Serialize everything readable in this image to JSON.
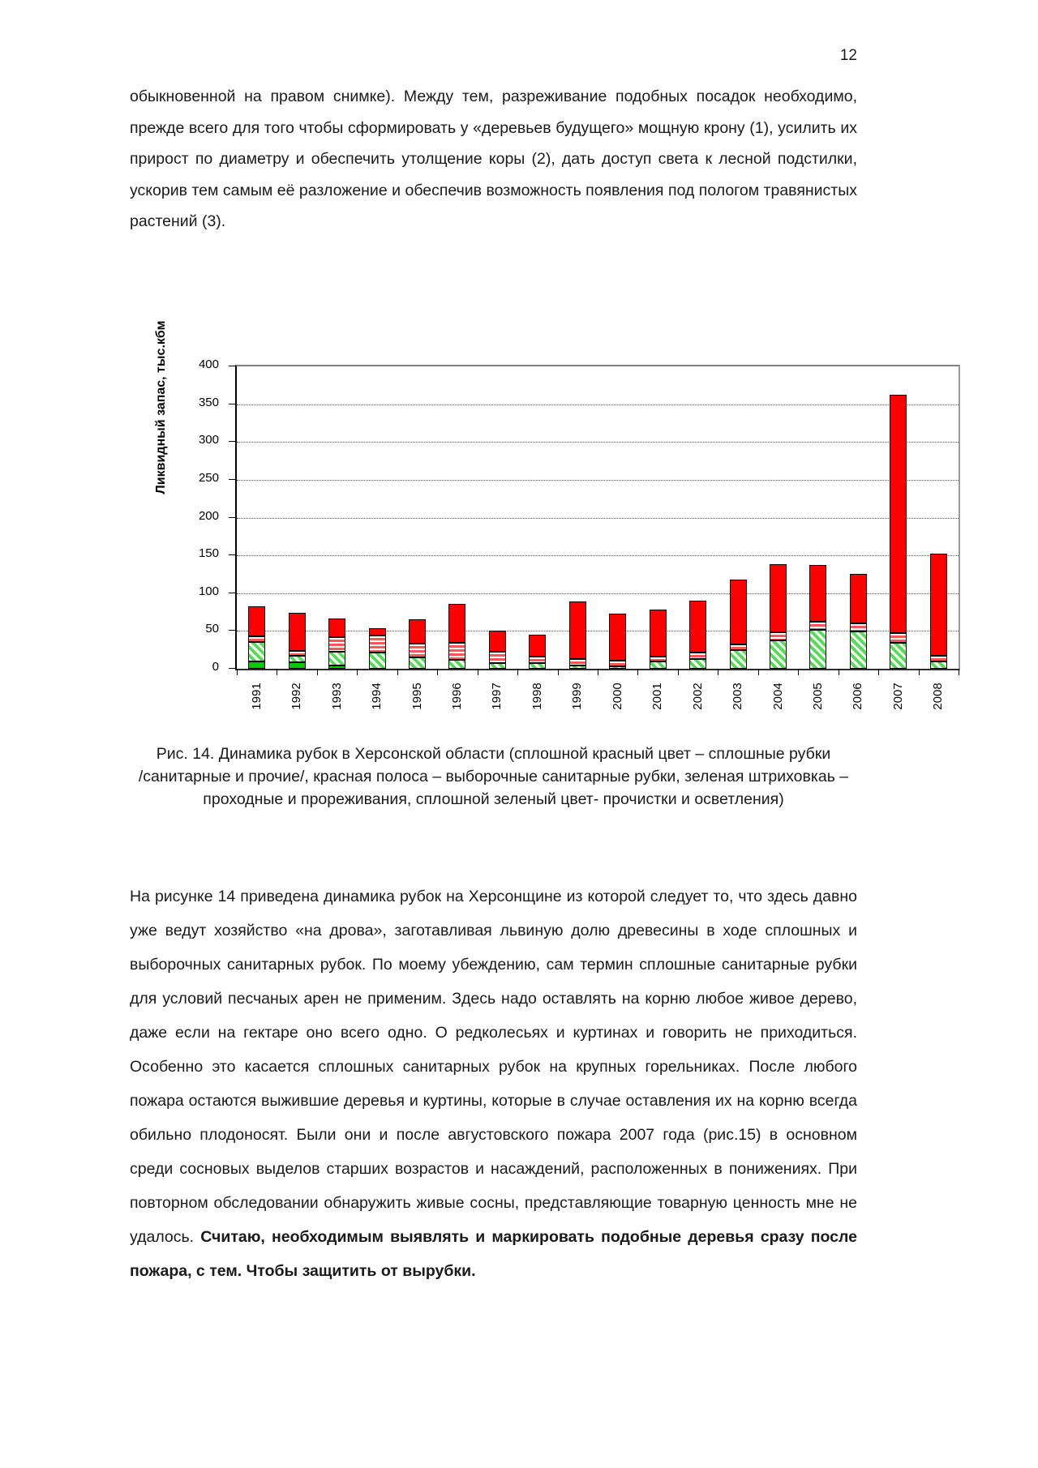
{
  "page": {
    "number": "12",
    "paragraph1": "обыкновенной на правом снимке). Между тем, разреживание  подобных посадок необходимо, прежде всего для того чтобы сформировать у «деревьев будущего» мощную крону (1), усилить их прирост по диаметру и обеспечить утолщение коры (2), дать доступ света к лесной подстилки, ускорив тем самым её разложение  и обеспечив возможность появления под пологом травянистых растений (3).",
    "caption": {
      "line1": "Рис. 14. Динамика рубок в Херсонской области (сплошной красный цвет – сплошные рубки",
      "line2": "/санитарные и прочие/, красная полоса – выборочные санитарные рубки, зеленая штриховкаь –",
      "line3": "проходные и прореживания, сплошной зеленый цвет- прочистки и осветления)"
    },
    "paragraph2_normal": "На рисунке 14 приведена динамика рубок на Херсонщине из которой следует  то, что здесь давно уже ведут хозяйство «на дрова», заготавливая львиную долю древесины в ходе сплошных и выборочных санитарных рубок.  По моему убеждению, сам термин сплошные санитарные рубки для условий песчаных арен не применим. Здесь надо оставлять на корню любое живое дерево, даже если на гектаре оно всего одно. О редколесьях и куртинах и говорить не приходиться.  Особенно это касается сплошных санитарных рубок на крупных горельниках. После любого  пожара остаются выжившие деревья и куртины, которые в случае оставления их на корню всегда обильно плодоносят. Были они и после августовского пожара 2007 года (рис.15) в основном среди сосновых выделов старших возрастов и насаждений, расположенных в понижениях. При повторном обследовании обнаружить живые сосны,  представляющие товарную ценность мне не удалось. ",
    "paragraph2_bold": "Считаю, необходимым выявлять  и маркировать подобные деревья сразу после пожара, с тем. Чтобы защитить от вырубки."
  },
  "chart_data": {
    "type": "bar",
    "stacked": true,
    "ylabel": "Ликвидный запас, тыс.кбм",
    "ylim": [
      0,
      400
    ],
    "ytick_step": 50,
    "grid": "horizontal-dotted",
    "legend": "none (described in figure caption)",
    "categories": [
      "1991",
      "1992",
      "1993",
      "1994",
      "1995",
      "1996",
      "1997",
      "1998",
      "1999",
      "2000",
      "2001",
      "2002",
      "2003",
      "2004",
      "2005",
      "2006",
      "2007",
      "2008"
    ],
    "series": [
      {
        "name": "прочистки и осветления",
        "style": "green-solid",
        "values": [
          10,
          9,
          4,
          0,
          0,
          0,
          0,
          0,
          0,
          0,
          0,
          0,
          0,
          0,
          0,
          0,
          0,
          0
        ]
      },
      {
        "name": "проходные и прореживания",
        "style": "green-hatch",
        "values": [
          25,
          8,
          19,
          22,
          15,
          12,
          7,
          7,
          4,
          3,
          10,
          13,
          25,
          38,
          52,
          49,
          34,
          10
        ]
      },
      {
        "name": "выборочные санитарные рубки",
        "style": "red-stripe",
        "values": [
          8,
          7,
          19,
          22,
          18,
          22,
          16,
          9,
          9,
          8,
          6,
          8,
          7,
          10,
          10,
          11,
          13,
          7
        ]
      },
      {
        "name": "сплошные рубки (санитарные и прочие)",
        "style": "red-solid",
        "values": [
          40,
          50,
          25,
          10,
          32,
          52,
          27,
          29,
          76,
          62,
          62,
          69,
          86,
          90,
          75,
          65,
          316,
          135
        ]
      }
    ],
    "totals": [
      83,
      74,
      67,
      54,
      65,
      86,
      50,
      45,
      89,
      73,
      78,
      90,
      118,
      138,
      137,
      125,
      363,
      152
    ]
  },
  "colors": {
    "red_solid": "#FF0000",
    "green_solid": "#00CC00",
    "green_hatch_stripe": "#55DD55",
    "red_stripe": "#FF5555",
    "bar_border": "#000000",
    "gridline": "#555555"
  }
}
